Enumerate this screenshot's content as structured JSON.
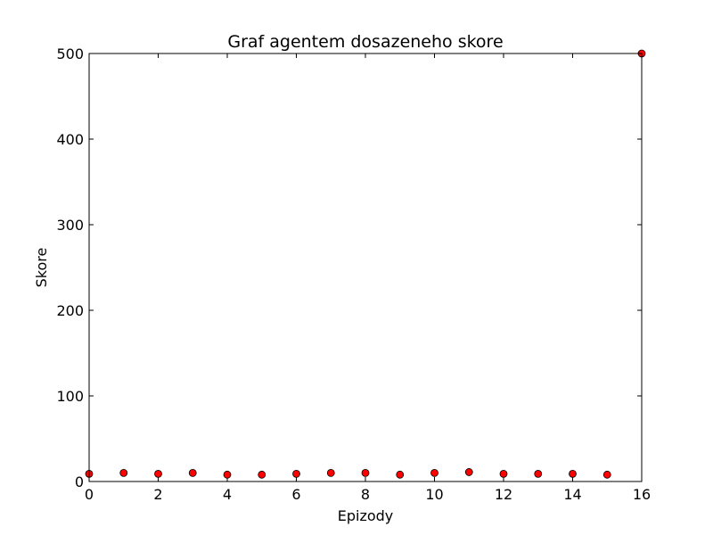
{
  "chart_data": {
    "type": "scatter",
    "title": "Graf agentem dosazeneho skore",
    "xlabel": "Epizody",
    "ylabel": "Skore",
    "xlim": [
      0,
      16
    ],
    "ylim": [
      0,
      500
    ],
    "xticks": [
      "0",
      "2",
      "4",
      "6",
      "8",
      "10",
      "12",
      "14",
      "16"
    ],
    "yticks": [
      "0",
      "100",
      "200",
      "300",
      "400",
      "500"
    ],
    "grid": false,
    "marker_color": "#ff0000",
    "x": [
      0,
      1,
      2,
      3,
      4,
      5,
      6,
      7,
      8,
      9,
      10,
      11,
      12,
      13,
      14,
      15,
      16
    ],
    "y": [
      9,
      10,
      9,
      10,
      8,
      8,
      9,
      10,
      10,
      8,
      10,
      11,
      9,
      9,
      9,
      8,
      500
    ]
  }
}
